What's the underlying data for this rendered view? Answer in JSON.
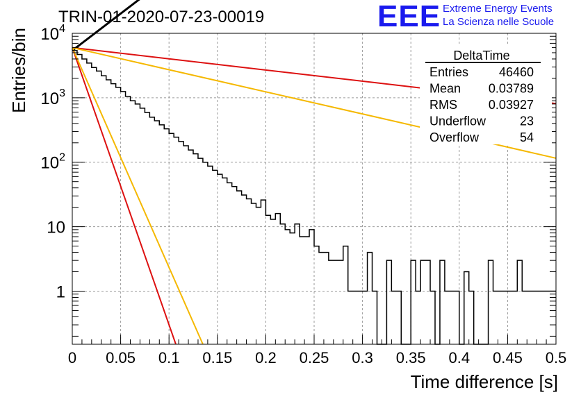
{
  "run_title": "TRIN-01-2020-07-23-00019",
  "logo": {
    "acronym": "EEE",
    "line1": "Extreme Energy Events",
    "line2": "La Scienza nelle Scuole",
    "color": "#1a1aee"
  },
  "stats_box": {
    "title": "DeltaTime",
    "rows": [
      {
        "label": "Entries",
        "value": "46460"
      },
      {
        "label": "Mean",
        "value": "0.03789"
      },
      {
        "label": "RMS",
        "value": "0.03927"
      },
      {
        "label": "Underflow",
        "value": "23"
      },
      {
        "label": "Overflow",
        "value": "54"
      }
    ]
  },
  "chart_data": {
    "type": "line",
    "xlabel": "Time difference [s]",
    "ylabel": "Entries/bin",
    "xlim": [
      0,
      0.5
    ],
    "ylim": [
      0.15,
      10000
    ],
    "yscale": "log",
    "grid": true,
    "x_ticks": [
      "0",
      "0.05",
      "0.1",
      "0.15",
      "0.2",
      "0.25",
      "0.3",
      "0.35",
      "0.4",
      "0.45",
      "0.5"
    ],
    "y_ticks": [
      {
        "value": 1,
        "base": "1",
        "exp": ""
      },
      {
        "value": 10,
        "base": "10",
        "exp": ""
      },
      {
        "value": 100,
        "base": "10",
        "exp": "2"
      },
      {
        "value": 1000,
        "base": "10",
        "exp": "3"
      },
      {
        "value": 10000,
        "base": "10",
        "exp": "4"
      }
    ],
    "histogram": {
      "color": "#000000",
      "bin_width": 0.005,
      "x_start": 0.0,
      "values": [
        5400,
        4700,
        4000,
        3450,
        2950,
        2600,
        2200,
        1900,
        1650,
        1450,
        1250,
        1050,
        900,
        800,
        690,
        590,
        500,
        440,
        380,
        330,
        280,
        245,
        210,
        180,
        155,
        135,
        115,
        100,
        87,
        75,
        65,
        57,
        48,
        42,
        36,
        31,
        27,
        23,
        20,
        26,
        15,
        13,
        16,
        11,
        9,
        8,
        11,
        7,
        7,
        9,
        5,
        4,
        4,
        3,
        3,
        3,
        5,
        1,
        1,
        1,
        1,
        4,
        1,
        0,
        0,
        3,
        1,
        1,
        0,
        0,
        3,
        1,
        3,
        3,
        1,
        0,
        3,
        1,
        1,
        1,
        0,
        2,
        1,
        0,
        0,
        0,
        3,
        1,
        1,
        1,
        1,
        1,
        3,
        1,
        1,
        1,
        1,
        1,
        1,
        1
      ]
    },
    "series": [
      {
        "color": "#000000",
        "y0": 5400,
        "slope_per_s": -26.4
      },
      {
        "color": "#dd1111",
        "y0": 6000,
        "slope_per_s": 4.0
      },
      {
        "color": "#f5b800",
        "y0": 6000,
        "slope_per_s": 7.9
      },
      {
        "color": "#dd1111",
        "y0": 6000,
        "slope_per_s": 99.0
      },
      {
        "color": "#f5b800",
        "y0": 6000,
        "slope_per_s": 78.5
      }
    ]
  }
}
